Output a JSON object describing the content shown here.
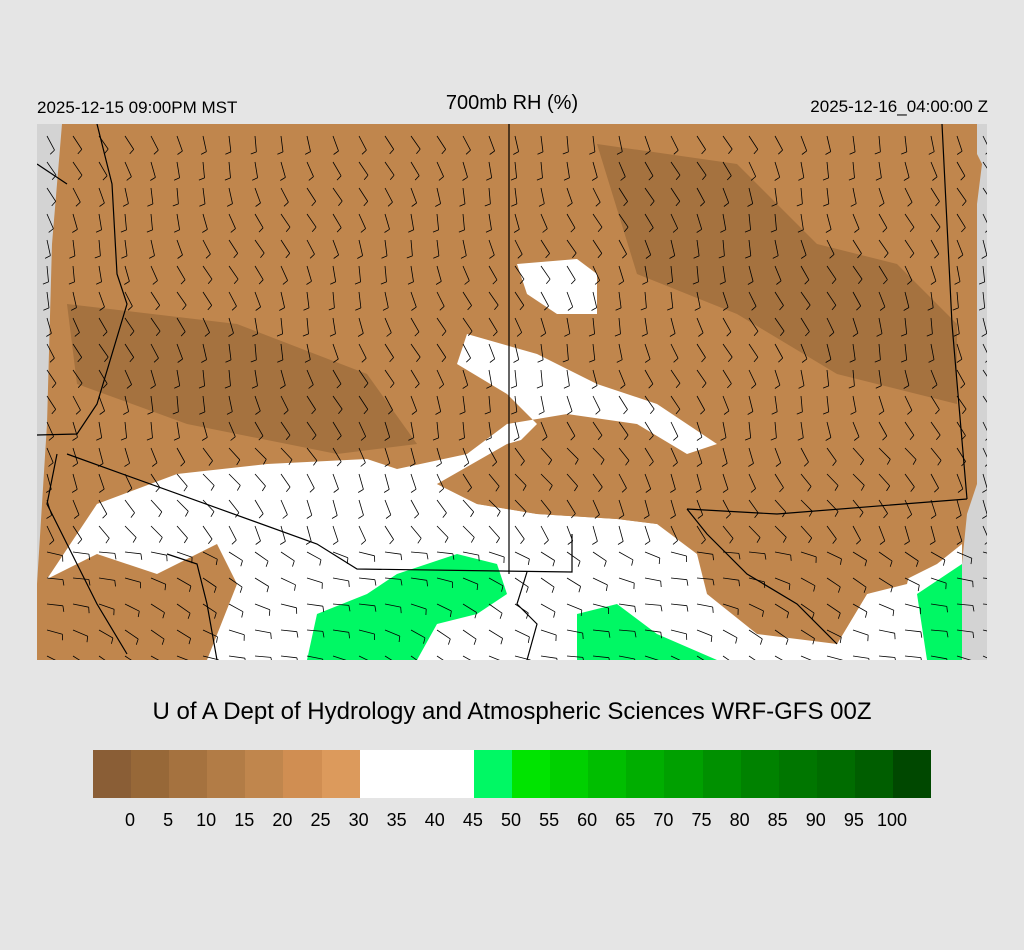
{
  "header": {
    "local_time": "2025-12-15 09:00PM MST",
    "title": "700mb RH (%)",
    "valid_time": "2025-12-16_04:00:00 Z"
  },
  "credit": "U of A Dept of Hydrology and Atmospheric Sciences WRF-GFS 00Z",
  "colorbar": {
    "colors": [
      "#8a5e36",
      "#976838",
      "#a5723f",
      "#b27c46",
      "#c0864d",
      "#d08e52",
      "#dc9a5c",
      "#ffffff",
      "#ffffff",
      "#ffffff",
      "#00f864",
      "#00e400",
      "#00d000",
      "#00be00",
      "#00ae00",
      "#00a000",
      "#009000",
      "#008200",
      "#007600",
      "#006c00",
      "#005e00",
      "#004800"
    ],
    "ticks": [
      "0",
      "5",
      "10",
      "15",
      "20",
      "25",
      "30",
      "35",
      "40",
      "45",
      "50",
      "55",
      "60",
      "65",
      "70",
      "75",
      "80",
      "85",
      "90",
      "95",
      "100"
    ]
  },
  "map": {
    "colors": {
      "dry": "#c0864d",
      "dry_dark": "#a5723f",
      "moist": "#ffffff",
      "wet": "#00f864",
      "outside": "#d3d3d3"
    }
  }
}
